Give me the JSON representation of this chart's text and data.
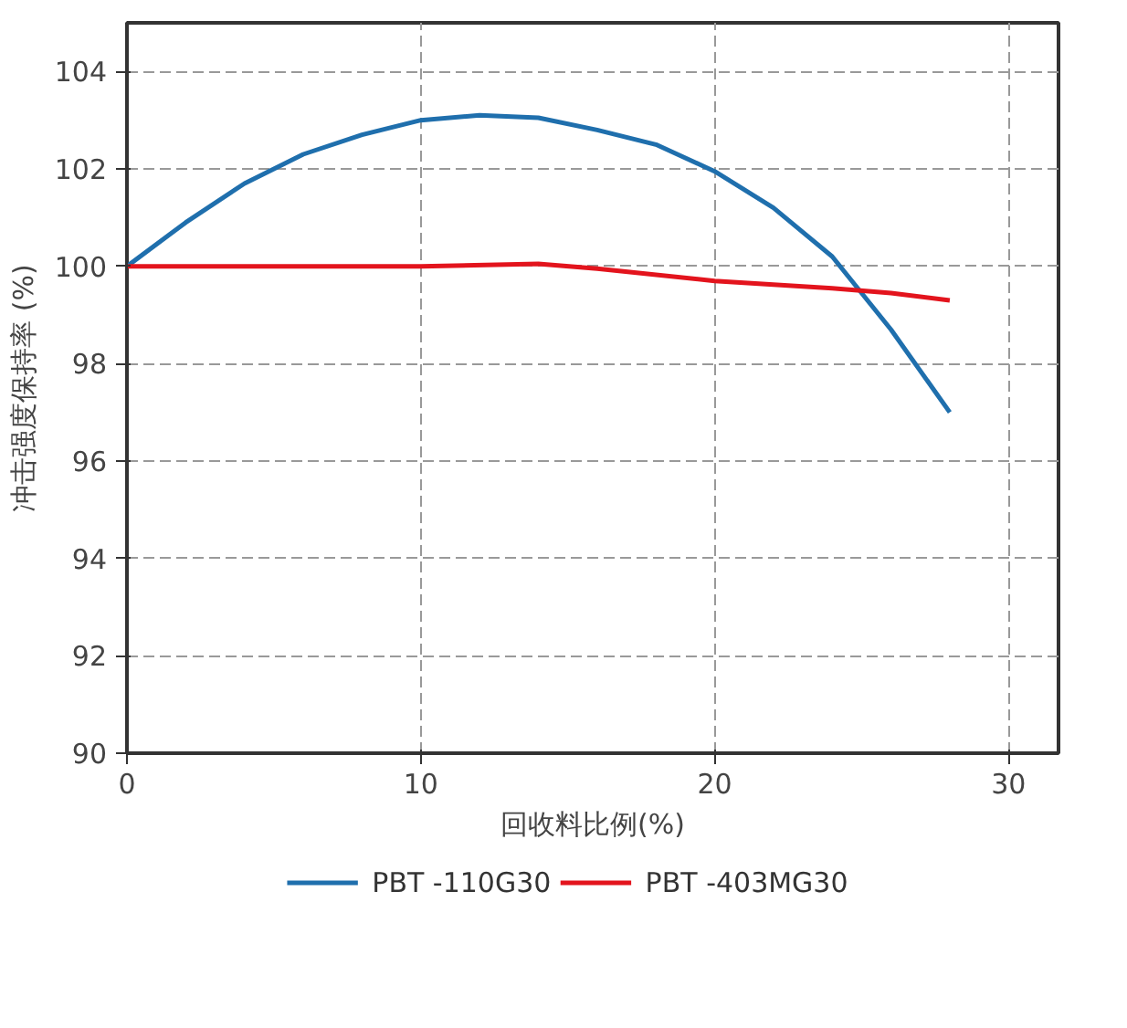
{
  "chart_data": {
    "type": "line",
    "xlabel": "回收料比例(%)",
    "ylabel": "冲击强度保持率 (%)",
    "xlim": [
      0,
      31.7
    ],
    "ylim": [
      90,
      105
    ],
    "xticks": [
      0,
      10,
      20,
      30
    ],
    "yticks": [
      90,
      92,
      94,
      96,
      98,
      100,
      102,
      104
    ],
    "grid": true,
    "legend": "bottom",
    "marker": "none",
    "line_style": "solid",
    "series": [
      {
        "name": "PBT -110G30",
        "color": "#1f6fad",
        "x": [
          0,
          2,
          4,
          6,
          8,
          10,
          12,
          14,
          16,
          18,
          20,
          22,
          24,
          26,
          28
        ],
        "values": [
          100,
          100.9,
          101.7,
          102.3,
          102.7,
          103,
          103.1,
          103.05,
          102.8,
          102.5,
          101.95,
          101.2,
          100.2,
          98.7,
          97
        ]
      },
      {
        "name": "PBT -403MG30",
        "color": "#e3141d",
        "x": [
          0,
          5,
          10,
          14,
          16,
          20,
          24,
          26,
          28
        ],
        "values": [
          100,
          100,
          100,
          100.05,
          99.95,
          99.7,
          99.55,
          99.45,
          99.3
        ]
      }
    ]
  }
}
